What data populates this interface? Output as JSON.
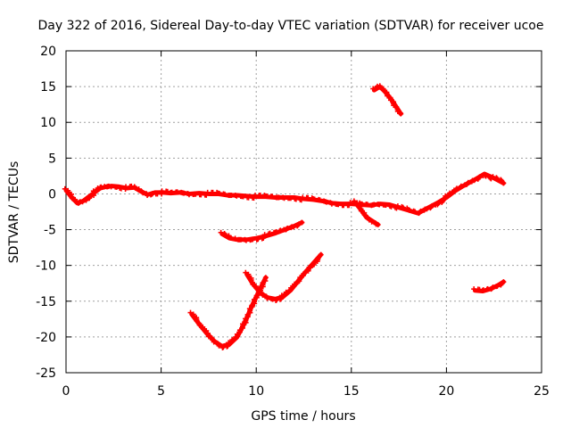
{
  "chart_data": {
    "type": "scatter",
    "title": "Day 322 of 2016, Sidereal Day-to-day VTEC variation (SDTVAR) for receiver ucoe",
    "xlabel": "GPS time / hours",
    "ylabel": "SDTVAR / TECUs",
    "xlim": [
      0,
      25
    ],
    "ylim": [
      -25,
      20
    ],
    "xticks": [
      0,
      5,
      10,
      15,
      20,
      25
    ],
    "yticks": [
      -25,
      -20,
      -15,
      -10,
      -5,
      0,
      5,
      10,
      15,
      20
    ],
    "grid": true,
    "marker": "plus",
    "series_color": "#ff0000",
    "series": [
      {
        "name": "main-trace",
        "x": [
          0.0,
          0.3,
          0.6,
          0.9,
          1.2,
          1.5,
          1.8,
          2.1,
          2.4,
          2.8,
          3.2,
          3.6,
          3.9,
          4.3,
          4.7,
          5.1,
          5.5,
          6.0,
          6.5,
          7.0,
          7.5,
          8.0,
          8.5,
          9.0,
          9.5,
          10.0,
          10.5,
          11.0,
          11.5,
          12.0,
          12.5,
          13.0,
          13.5,
          14.0,
          14.5,
          15.0,
          15.5,
          16.0,
          16.5,
          17.0,
          17.5,
          18.0,
          18.5,
          19.0,
          19.5,
          20.0,
          20.5,
          21.0,
          21.5,
          22.0,
          22.5,
          23.0
        ],
        "y": [
          0.5,
          -0.5,
          -1.3,
          -1.0,
          -0.4,
          0.2,
          0.8,
          1.0,
          1.1,
          1.0,
          0.8,
          0.9,
          0.4,
          -0.1,
          0.2,
          0.2,
          0.1,
          0.2,
          0.0,
          0.1,
          0.0,
          0.0,
          -0.2,
          -0.2,
          -0.3,
          -0.4,
          -0.4,
          -0.5,
          -0.5,
          -0.5,
          -0.7,
          -0.8,
          -1.0,
          -1.3,
          -1.4,
          -1.4,
          -1.5,
          -1.6,
          -1.4,
          -1.5,
          -1.9,
          -2.3,
          -2.7,
          -2.0,
          -1.3,
          -0.5,
          0.5,
          1.3,
          2.0,
          2.8,
          2.2,
          1.5
        ]
      },
      {
        "name": "dip-branch",
        "x": [
          15.2,
          15.5,
          15.8,
          16.1,
          16.4
        ],
        "y": [
          -1.2,
          -2.2,
          -3.3,
          -3.8,
          -4.3
        ]
      },
      {
        "name": "upper-arc",
        "x": [
          16.2,
          16.5,
          16.8,
          17.1,
          17.4,
          17.6
        ],
        "y": [
          14.5,
          15.0,
          14.2,
          13.2,
          12.0,
          11.2
        ]
      },
      {
        "name": "mid-arc",
        "x": [
          8.2,
          8.6,
          9.0,
          9.5,
          10.0,
          10.5,
          11.0,
          11.5,
          12.0,
          12.4
        ],
        "y": [
          -5.6,
          -6.2,
          -6.4,
          -6.4,
          -6.2,
          -5.9,
          -5.5,
          -5.0,
          -4.5,
          -4.0
        ]
      },
      {
        "name": "deep-arc",
        "x": [
          6.6,
          7.0,
          7.4,
          7.8,
          8.2,
          8.6,
          9.0,
          9.4,
          9.8,
          10.2,
          10.5
        ],
        "y": [
          -16.8,
          -18.2,
          -19.5,
          -20.6,
          -21.3,
          -21.0,
          -20.0,
          -18.0,
          -15.5,
          -13.3,
          -11.7
        ]
      },
      {
        "name": "hook-arc",
        "x": [
          9.5,
          9.8,
          10.2,
          10.6,
          11.0,
          11.4,
          11.8,
          12.2,
          12.6,
          13.0,
          13.4
        ],
        "y": [
          -11.2,
          -12.5,
          -13.8,
          -14.5,
          -14.7,
          -14.4,
          -13.5,
          -12.2,
          -10.9,
          -9.7,
          -8.5
        ]
      },
      {
        "name": "small-arc",
        "x": [
          21.5,
          21.9,
          22.3,
          22.7,
          23.0
        ],
        "y": [
          -13.5,
          -13.6,
          -13.3,
          -12.8,
          -12.3
        ]
      }
    ]
  }
}
